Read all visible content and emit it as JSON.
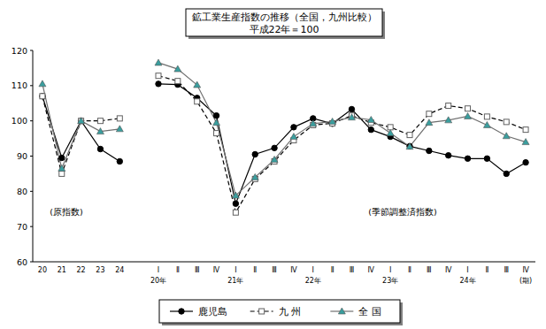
{
  "chart_data": {
    "type": "line",
    "title": "鉱工業生産指数の推移（全国，九州比較）",
    "subtitle": "平成22年＝100",
    "annotations": [
      "(原指数)",
      "(季節調整済指数)"
    ],
    "categories": [
      "20",
      "21",
      "22",
      "23",
      "24",
      null,
      "Ⅰ\n20年",
      "Ⅱ",
      "Ⅲ",
      "Ⅳ",
      "Ⅰ\n21年",
      "Ⅱ",
      "Ⅲ",
      "Ⅳ",
      "Ⅰ\n22年",
      "Ⅱ",
      "Ⅲ",
      "Ⅳ",
      "Ⅰ\n23年",
      "Ⅱ",
      "Ⅲ",
      "Ⅳ",
      "Ⅰ\n24年",
      "Ⅱ",
      "Ⅲ",
      "Ⅳ\n(期)"
    ],
    "series": [
      {
        "name": "鹿児島",
        "color": "#000000",
        "marker": "circle",
        "line_style": "solid",
        "values": [
          107,
          89.5,
          100,
          92,
          88.5,
          null,
          110.5,
          110.3,
          106.5,
          101.5,
          76.5,
          90.5,
          92.3,
          98.2,
          100.7,
          99.2,
          103.3,
          97.5,
          95.5,
          92.8,
          91.5,
          90.2,
          89.3,
          89.3,
          85,
          88.2
        ]
      },
      {
        "name": "九 州",
        "color": "#606060",
        "marker": "square",
        "line_style": "dashed",
        "values": [
          107,
          85,
          100,
          100,
          100.7,
          null,
          112.8,
          111.3,
          105.5,
          96.5,
          74,
          83.5,
          88.5,
          94.5,
          98.8,
          99.3,
          101.5,
          99.5,
          98.2,
          96,
          102,
          104.3,
          103.5,
          101.2,
          99.7,
          97.5
        ]
      },
      {
        "name": "全 国",
        "color": "#3a9e9e",
        "marker": "triangle",
        "line_style": "solid",
        "values": [
          110.5,
          86.5,
          100,
          97,
          97.7,
          null,
          116.5,
          114.7,
          110.2,
          99.5,
          78.8,
          84,
          89,
          95.5,
          99.2,
          99.8,
          101,
          100.3,
          96.5,
          92.7,
          99.5,
          100.2,
          101.3,
          98.8,
          95.7,
          94
        ]
      }
    ],
    "ylim": [
      60,
      120
    ],
    "yticks": [
      60,
      70,
      80,
      90,
      100,
      110,
      120
    ],
    "grid": false,
    "legend": "bottom"
  }
}
